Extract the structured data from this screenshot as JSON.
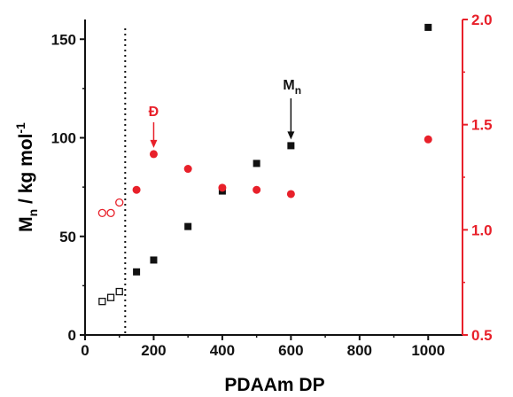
{
  "chart_data": {
    "type": "scatter",
    "xlabel": "PDAAm DP",
    "ylabel": "M",
    "ylabel_sub": "n",
    "ylabel_unit": " / kg mol",
    "ylabel_sup": "-1",
    "y2label": "",
    "xlim": [
      0,
      1100
    ],
    "ylim": [
      0,
      160
    ],
    "y2lim": [
      0.5,
      2.0
    ],
    "xticks": [
      "0",
      "200",
      "400",
      "600",
      "800",
      "1000"
    ],
    "yticks": [
      "0",
      "50",
      "100",
      "150"
    ],
    "y2ticks": [
      "0.5",
      "1.0",
      "1.5",
      "2.0"
    ],
    "grid": false,
    "threshold_x": 117,
    "colors": {
      "mn": "#111111",
      "dispersity": "#e8202a"
    },
    "series": [
      {
        "axis": "left",
        "marker": "open-square",
        "x": [
          50,
          75,
          100
        ],
        "y": [
          17,
          19,
          22
        ]
      },
      {
        "axis": "left",
        "marker": "filled-square",
        "x": [
          150,
          200,
          300,
          400,
          500,
          600,
          1000
        ],
        "y": [
          32,
          38,
          55,
          73,
          87,
          96,
          156
        ]
      },
      {
        "axis": "right",
        "marker": "open-circle",
        "x": [
          50,
          75,
          100
        ],
        "y": [
          1.08,
          1.08,
          1.13
        ]
      },
      {
        "axis": "right",
        "marker": "filled-circle",
        "x": [
          150,
          200,
          300,
          400,
          500,
          600,
          1000
        ],
        "y": [
          1.19,
          1.36,
          1.29,
          1.2,
          1.19,
          1.17,
          1.43
        ]
      }
    ],
    "annotations": {
      "mn": {
        "label": "M",
        "sub": "n",
        "x": 600,
        "y": 96
      },
      "dispersity": {
        "label": "Đ",
        "x": 200,
        "y": 1.36
      }
    }
  }
}
